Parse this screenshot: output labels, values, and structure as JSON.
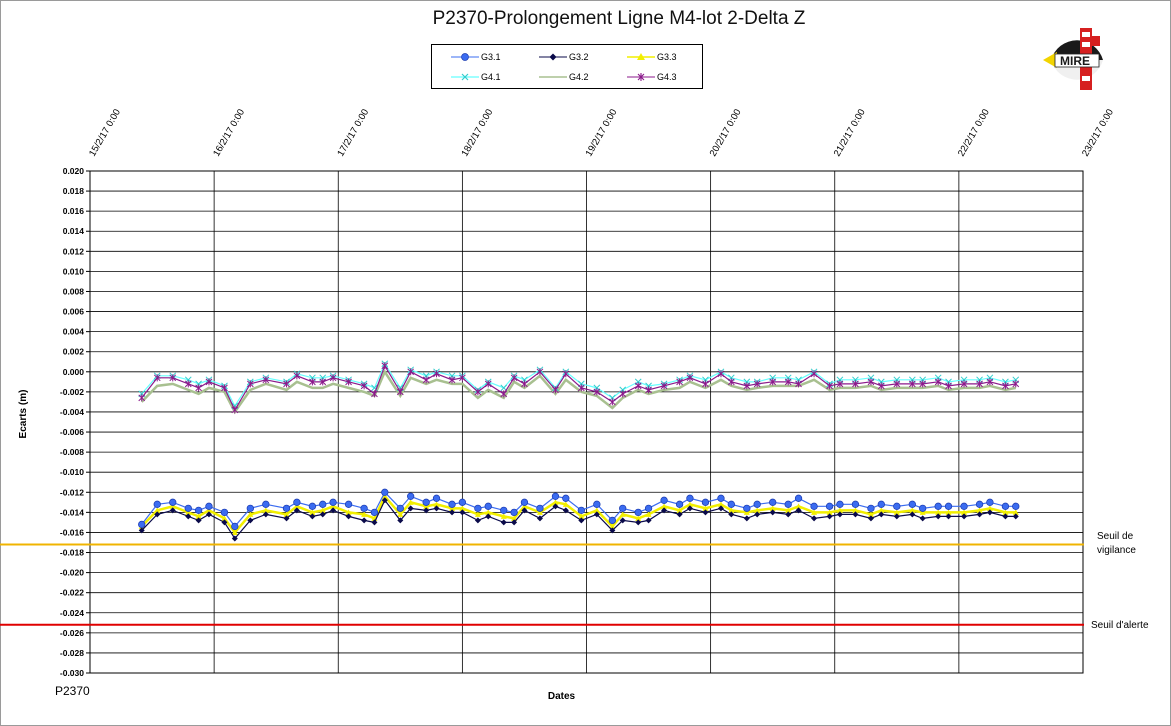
{
  "footer_id": "P2370",
  "colors": {
    "G3.1": "#3b6cf0",
    "G3.2": "#0a0a4a",
    "G3.3": "#f2ef00",
    "G4.1": "#66ffff",
    "G4.2": "#a8c090",
    "G4.3": "#8b1a8b",
    "vigilance": "#f0b400",
    "alerte": "#e00000"
  },
  "logo": {
    "text": "MIRE",
    "icon": "mire-logo-icon"
  },
  "chart_data": {
    "type": "line",
    "title": "P2370-Prolongement  Ligne  M4-lot 2-Delta  Z",
    "xlabel": "Dates",
    "ylabel": "Ecarts (m)",
    "ylim": [
      -0.03,
      0.02
    ],
    "xlim": [
      "15/2/17 0:00",
      "23/2/17 0:00"
    ],
    "x_ticks": [
      "15/2/17 0:00",
      "16/2/17 0:00",
      "17/2/17 0:00",
      "18/2/17 0:00",
      "19/2/17 0:00",
      "20/2/17 0:00",
      "21/2/17 0:00",
      "22/2/17 0:00",
      "23/2/17 0:00"
    ],
    "y_ticks": [
      "0.020",
      "0.018",
      "0.016",
      "0.014",
      "0.012",
      "0.010",
      "0.008",
      "0.006",
      "0.004",
      "0.002",
      "0.000",
      "-0.002",
      "-0.004",
      "-0.006",
      "-0.008",
      "-0.010",
      "-0.012",
      "-0.014",
      "-0.016",
      "-0.018",
      "-0.020",
      "-0.022",
      "-0.024",
      "-0.026",
      "-0.028",
      "-0.030"
    ],
    "grid": true,
    "legend_position": "top-center",
    "thresholds": [
      {
        "label": "Seuil de vigilance",
        "value": -0.0172
      },
      {
        "label": "Seuil d'alerte",
        "value": -0.0252
      }
    ],
    "x": [
      "15/2/17 10:00",
      "15/2/17 13:00",
      "15/2/17 16:00",
      "15/2/17 19:00",
      "15/2/17 21:00",
      "15/2/17 23:00",
      "16/2/17 2:00",
      "16/2/17 4:00",
      "16/2/17 7:00",
      "16/2/17 10:00",
      "16/2/17 14:00",
      "16/2/17 16:00",
      "16/2/17 19:00",
      "16/2/17 21:00",
      "16/2/17 23:00",
      "17/2/17 2:00",
      "17/2/17 5:00",
      "17/2/17 7:00",
      "17/2/17 9:00",
      "17/2/17 12:00",
      "17/2/17 14:00",
      "17/2/17 17:00",
      "17/2/17 19:00",
      "17/2/17 22:00",
      "18/2/17 0:00",
      "18/2/17 3:00",
      "18/2/17 5:00",
      "18/2/17 8:00",
      "18/2/17 10:00",
      "18/2/17 12:00",
      "18/2/17 15:00",
      "18/2/17 18:00",
      "18/2/17 20:00",
      "18/2/17 23:00",
      "19/2/17 2:00",
      "19/2/17 5:00",
      "19/2/17 7:00",
      "19/2/17 10:00",
      "19/2/17 12:00",
      "19/2/17 15:00",
      "19/2/17 18:00",
      "19/2/17 20:00",
      "19/2/17 23:00",
      "20/2/17 2:00",
      "20/2/17 4:00",
      "20/2/17 7:00",
      "20/2/17 9:00",
      "20/2/17 12:00",
      "20/2/17 15:00",
      "20/2/17 17:00",
      "20/2/17 20:00",
      "20/2/17 23:00",
      "21/2/17 1:00",
      "21/2/17 4:00",
      "21/2/17 7:00",
      "21/2/17 9:00",
      "21/2/17 12:00",
      "21/2/17 15:00",
      "21/2/17 17:00",
      "21/2/17 20:00",
      "21/2/17 22:00",
      "22/2/17 1:00",
      "22/2/17 4:00",
      "22/2/17 6:00",
      "22/2/17 9:00",
      "22/2/17 11:00"
    ],
    "series": [
      {
        "name": "G3.1",
        "marker": "circle",
        "values": [
          -0.0152,
          -0.0132,
          -0.013,
          -0.0136,
          -0.0138,
          -0.0134,
          -0.014,
          -0.0154,
          -0.0136,
          -0.0132,
          -0.0136,
          -0.013,
          -0.0134,
          -0.0132,
          -0.013,
          -0.0132,
          -0.0136,
          -0.014,
          -0.012,
          -0.0136,
          -0.0124,
          -0.013,
          -0.0126,
          -0.0132,
          -0.013,
          -0.0136,
          -0.0134,
          -0.0138,
          -0.014,
          -0.013,
          -0.0136,
          -0.0124,
          -0.0126,
          -0.0138,
          -0.0132,
          -0.0148,
          -0.0136,
          -0.014,
          -0.0136,
          -0.0128,
          -0.0132,
          -0.0126,
          -0.013,
          -0.0126,
          -0.0132,
          -0.0136,
          -0.0132,
          -0.013,
          -0.0132,
          -0.0126,
          -0.0134,
          -0.0134,
          -0.0132,
          -0.0132,
          -0.0136,
          -0.0132,
          -0.0134,
          -0.0132,
          -0.0136,
          -0.0134,
          -0.0134,
          -0.0134,
          -0.0132,
          -0.013,
          -0.0134,
          -0.0134
        ]
      },
      {
        "name": "G3.2",
        "marker": "diamond",
        "values": [
          -0.0158,
          -0.0142,
          -0.0138,
          -0.0144,
          -0.0148,
          -0.0142,
          -0.015,
          -0.0166,
          -0.0148,
          -0.0142,
          -0.0146,
          -0.0138,
          -0.0144,
          -0.0142,
          -0.0138,
          -0.0144,
          -0.0148,
          -0.015,
          -0.0128,
          -0.0148,
          -0.0136,
          -0.0138,
          -0.0136,
          -0.014,
          -0.014,
          -0.0148,
          -0.0144,
          -0.015,
          -0.015,
          -0.0138,
          -0.0146,
          -0.0134,
          -0.0138,
          -0.0148,
          -0.0142,
          -0.0158,
          -0.0148,
          -0.015,
          -0.0148,
          -0.0138,
          -0.0142,
          -0.0136,
          -0.014,
          -0.0136,
          -0.0142,
          -0.0146,
          -0.0142,
          -0.014,
          -0.0142,
          -0.0138,
          -0.0146,
          -0.0144,
          -0.0142,
          -0.0142,
          -0.0146,
          -0.0142,
          -0.0144,
          -0.0142,
          -0.0146,
          -0.0144,
          -0.0144,
          -0.0144,
          -0.0142,
          -0.014,
          -0.0144,
          -0.0144
        ]
      },
      {
        "name": "G3.3",
        "marker": "triangle",
        "values": [
          -0.0154,
          -0.0138,
          -0.0134,
          -0.014,
          -0.0144,
          -0.0138,
          -0.0146,
          -0.016,
          -0.0142,
          -0.0138,
          -0.0142,
          -0.0134,
          -0.014,
          -0.0138,
          -0.0134,
          -0.014,
          -0.0142,
          -0.0146,
          -0.0124,
          -0.0142,
          -0.013,
          -0.0134,
          -0.0132,
          -0.0136,
          -0.0136,
          -0.0142,
          -0.014,
          -0.0144,
          -0.0146,
          -0.0134,
          -0.014,
          -0.013,
          -0.0132,
          -0.0144,
          -0.0138,
          -0.0154,
          -0.0142,
          -0.0146,
          -0.0142,
          -0.0134,
          -0.0138,
          -0.0132,
          -0.0136,
          -0.0132,
          -0.0138,
          -0.014,
          -0.0138,
          -0.0136,
          -0.0138,
          -0.0134,
          -0.014,
          -0.014,
          -0.0138,
          -0.0138,
          -0.0142,
          -0.0138,
          -0.014,
          -0.0138,
          -0.014,
          -0.014,
          -0.014,
          -0.014,
          -0.0138,
          -0.0136,
          -0.014,
          -0.014
        ]
      },
      {
        "name": "G4.1",
        "marker": "x",
        "values": [
          -0.0022,
          -0.0004,
          -0.0004,
          -0.0008,
          -0.0012,
          -0.0008,
          -0.0014,
          -0.0034,
          -0.001,
          -0.0006,
          -0.001,
          -0.0002,
          -0.0006,
          -0.0006,
          -0.0004,
          -0.0008,
          -0.0012,
          -0.0016,
          0.0008,
          -0.0016,
          0.0002,
          -0.0004,
          0.0,
          -0.0004,
          -0.0004,
          -0.0018,
          -0.001,
          -0.0016,
          -0.0004,
          -0.0008,
          0.0002,
          -0.0016,
          0.0,
          -0.0012,
          -0.0016,
          -0.0026,
          -0.0018,
          -0.001,
          -0.0014,
          -0.0012,
          -0.0008,
          -0.0004,
          -0.0008,
          0.0,
          -0.0006,
          -0.001,
          -0.001,
          -0.0006,
          -0.0006,
          -0.0008,
          0.0,
          -0.0012,
          -0.0008,
          -0.0008,
          -0.0006,
          -0.001,
          -0.0008,
          -0.0008,
          -0.0008,
          -0.0006,
          -0.001,
          -0.0008,
          -0.0008,
          -0.0006,
          -0.001,
          -0.0008
        ]
      },
      {
        "name": "G4.2",
        "marker": "none",
        "values": [
          -0.003,
          -0.0014,
          -0.0012,
          -0.0018,
          -0.0022,
          -0.0016,
          -0.002,
          -0.004,
          -0.0018,
          -0.0012,
          -0.0018,
          -0.001,
          -0.0016,
          -0.0016,
          -0.0012,
          -0.0016,
          -0.002,
          -0.0024,
          0.0,
          -0.0024,
          -0.0006,
          -0.0012,
          -0.0008,
          -0.0012,
          -0.0012,
          -0.0026,
          -0.0018,
          -0.0026,
          -0.001,
          -0.0016,
          -0.0004,
          -0.0022,
          -0.0008,
          -0.002,
          -0.0024,
          -0.0036,
          -0.0026,
          -0.0018,
          -0.0022,
          -0.0018,
          -0.0016,
          -0.001,
          -0.0016,
          -0.0008,
          -0.0014,
          -0.0018,
          -0.0016,
          -0.0014,
          -0.0014,
          -0.0014,
          -0.0008,
          -0.0018,
          -0.0016,
          -0.0016,
          -0.0014,
          -0.0018,
          -0.0016,
          -0.0016,
          -0.0016,
          -0.0014,
          -0.0018,
          -0.0016,
          -0.0016,
          -0.0014,
          -0.0018,
          -0.0016
        ]
      },
      {
        "name": "G4.3",
        "marker": "star",
        "values": [
          -0.0026,
          -0.0006,
          -0.0006,
          -0.0012,
          -0.0016,
          -0.001,
          -0.0016,
          -0.0038,
          -0.0012,
          -0.0008,
          -0.0012,
          -0.0004,
          -0.001,
          -0.001,
          -0.0006,
          -0.001,
          -0.0014,
          -0.0022,
          0.0006,
          -0.002,
          0.0,
          -0.0008,
          -0.0002,
          -0.0008,
          -0.0006,
          -0.002,
          -0.0012,
          -0.0022,
          -0.0006,
          -0.0012,
          0.0,
          -0.0018,
          -0.0002,
          -0.0016,
          -0.002,
          -0.003,
          -0.0022,
          -0.0014,
          -0.0018,
          -0.0014,
          -0.001,
          -0.0006,
          -0.0012,
          -0.0002,
          -0.001,
          -0.0014,
          -0.0012,
          -0.001,
          -0.001,
          -0.0012,
          -0.0002,
          -0.0014,
          -0.0012,
          -0.0012,
          -0.001,
          -0.0014,
          -0.0012,
          -0.0012,
          -0.0012,
          -0.001,
          -0.0014,
          -0.0012,
          -0.0012,
          -0.001,
          -0.0014,
          -0.0012
        ]
      }
    ]
  }
}
